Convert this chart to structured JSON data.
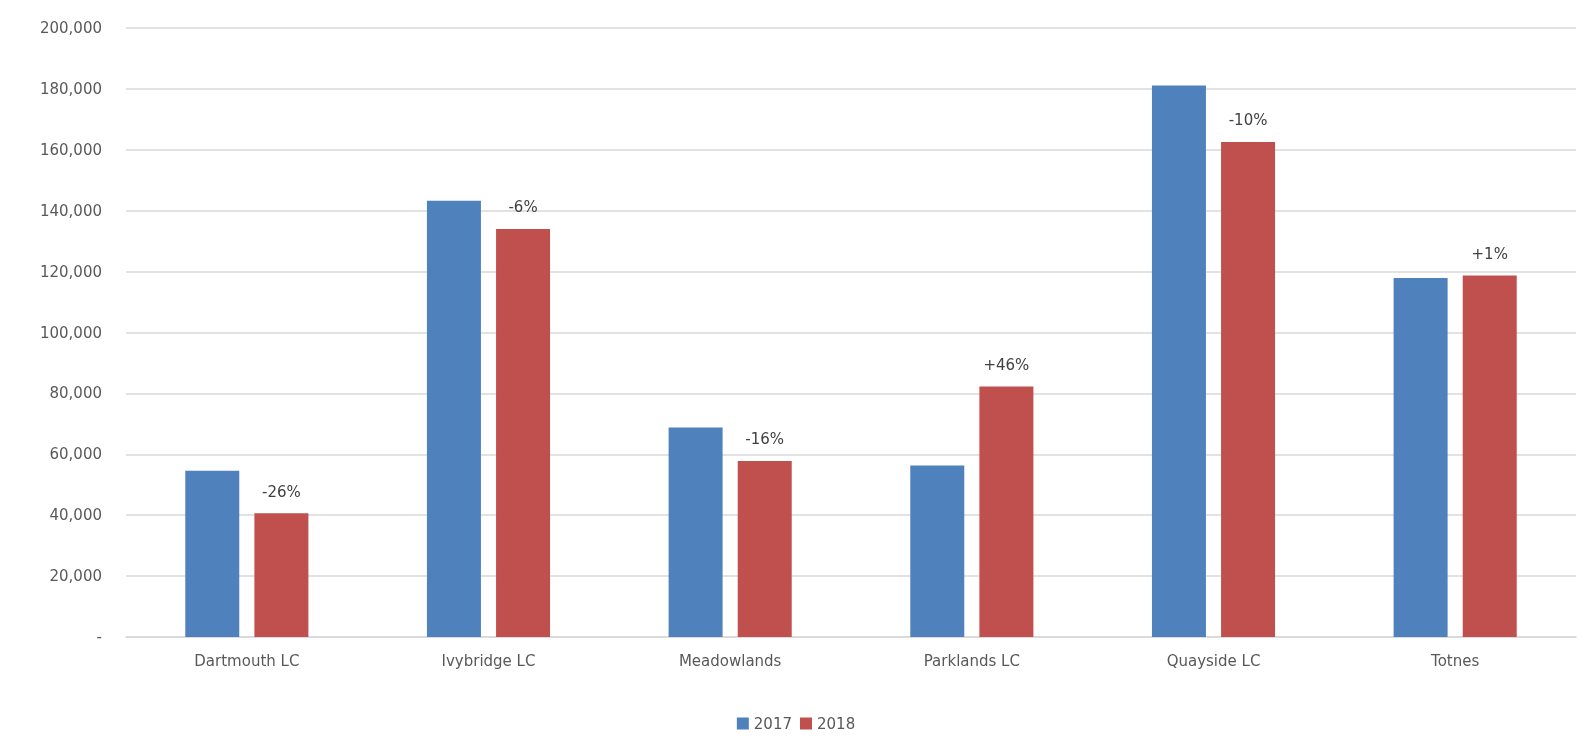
{
  "chart_data": {
    "type": "bar",
    "categories": [
      "Dartmouth LC",
      "Ivybridge LC",
      "Meadowlands",
      "Parklands LC",
      "Quayside LC",
      "Totnes"
    ],
    "series": [
      {
        "name": "2017",
        "color": "#4f81bd",
        "values": [
          54600,
          143300,
          68800,
          56300,
          181100,
          117900
        ]
      },
      {
        "name": "2018",
        "color": "#c0504d",
        "values": [
          40600,
          134000,
          57800,
          82300,
          162600,
          118700
        ]
      }
    ],
    "annotations": [
      "-26%",
      "-6%",
      "-16%",
      "+46%",
      "-10%",
      "+1%"
    ],
    "ylim": [
      0,
      200000
    ],
    "yticks": [
      {
        "value": 0,
        "label": "-"
      },
      {
        "value": 20000,
        "label": "20,000"
      },
      {
        "value": 40000,
        "label": "40,000"
      },
      {
        "value": 60000,
        "label": "60,000"
      },
      {
        "value": 80000,
        "label": "80,000"
      },
      {
        "value": 100000,
        "label": "100,000"
      },
      {
        "value": 120000,
        "label": "120,000"
      },
      {
        "value": 140000,
        "label": "140,000"
      },
      {
        "value": 160000,
        "label": "160,000"
      },
      {
        "value": 180000,
        "label": "180,000"
      },
      {
        "value": 200000,
        "label": "200,000"
      }
    ],
    "grid": "y",
    "legend": "bottom"
  }
}
